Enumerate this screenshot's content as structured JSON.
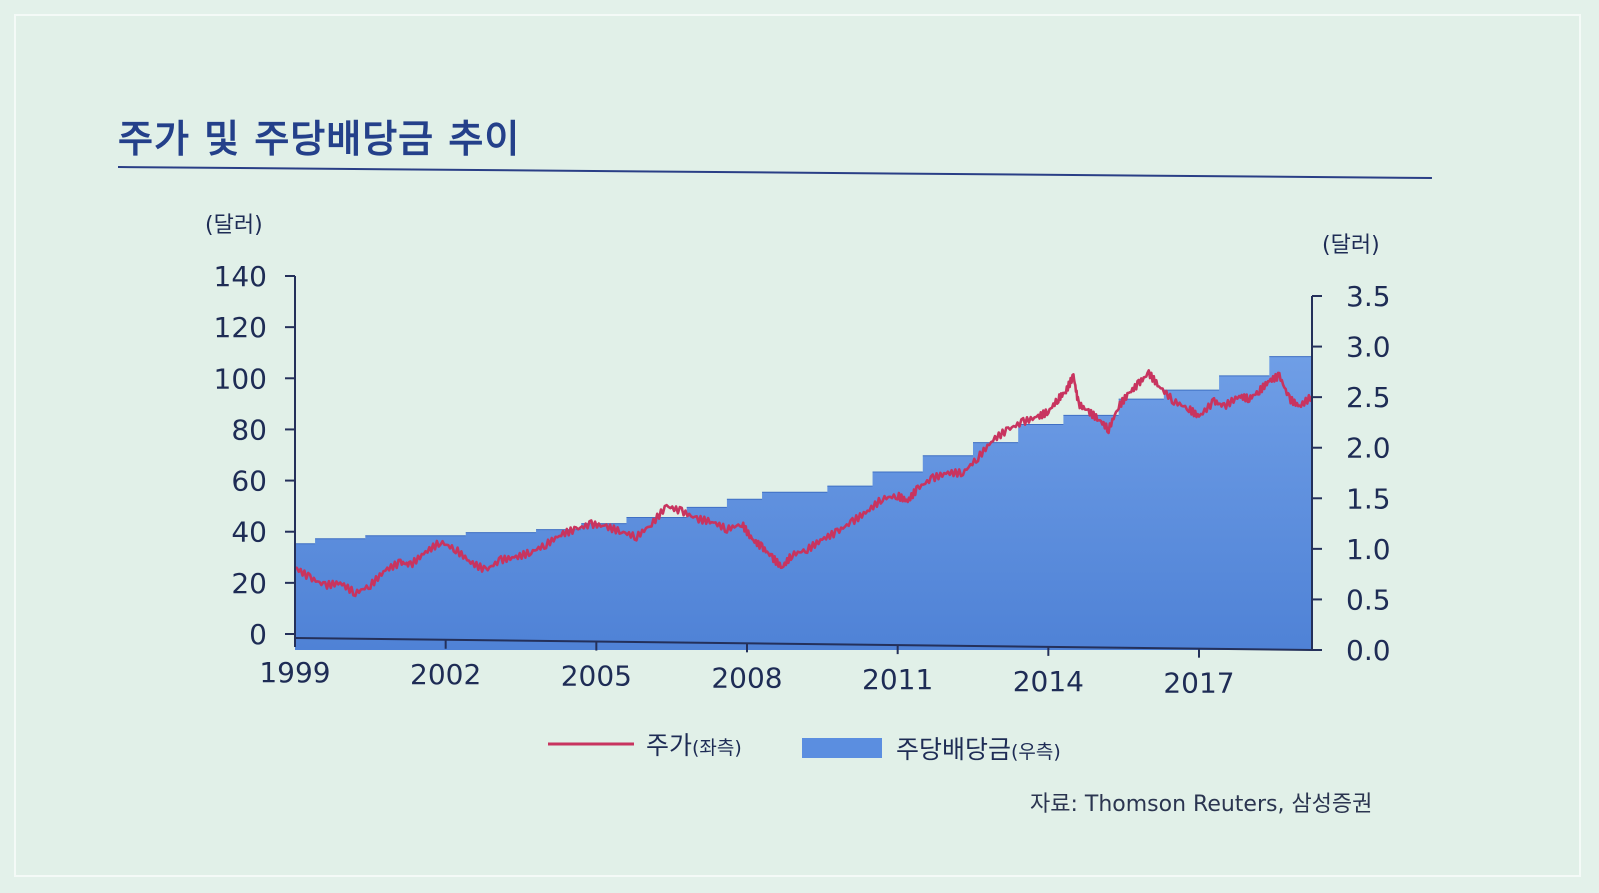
{
  "title": "주가 및 주당배당금 추이",
  "source": "자료: Thomson Reuters, 삼성증권",
  "chart_data": {
    "type": "line",
    "left_axis": {
      "unit_label": "(달러)",
      "ticks": [
        "140",
        "120",
        "100",
        "80",
        "60",
        "40",
        "20",
        "0"
      ],
      "range": [
        0,
        140
      ]
    },
    "right_axis": {
      "unit_label": "(달러)",
      "ticks": [
        "3.5",
        "3.0",
        "2.5",
        "2.0",
        "1.5",
        "1.0",
        "0.5",
        "0.0"
      ],
      "range": [
        0,
        3.5
      ]
    },
    "x_ticks": [
      "1999",
      "2002",
      "2005",
      "2008",
      "2011",
      "2014",
      "2017"
    ],
    "x_range": [
      1999.0,
      2019.25
    ],
    "grid": false,
    "legend_position": "bottom",
    "series": [
      {
        "name": "주가(좌측)",
        "type": "line",
        "axis": "left",
        "color": "#c8345f",
        "x": [
          1999.0,
          1999.3,
          1999.6,
          1999.9,
          2000.2,
          2000.5,
          2000.8,
          2001.1,
          2001.3,
          2001.6,
          2001.9,
          2002.2,
          2002.5,
          2002.8,
          2003.1,
          2003.4,
          2003.7,
          2004.0,
          2004.3,
          2004.6,
          2004.9,
          2005.2,
          2005.5,
          2005.8,
          2006.1,
          2006.4,
          2006.7,
          2007.0,
          2007.3,
          2007.6,
          2007.9,
          2008.1,
          2008.3,
          2008.5,
          2008.7,
          2008.9,
          2009.2,
          2009.5,
          2009.8,
          2010.1,
          2010.4,
          2010.7,
          2011.0,
          2011.2,
          2011.4,
          2011.7,
          2012.0,
          2012.3,
          2012.6,
          2012.9,
          2013.2,
          2013.5,
          2013.8,
          2014.0,
          2014.2,
          2014.35,
          2014.5,
          2014.6,
          2014.8,
          2015.0,
          2015.2,
          2015.4,
          2015.6,
          2015.8,
          2016.0,
          2016.2,
          2016.5,
          2016.8,
          2017.0,
          2017.3,
          2017.5,
          2017.8,
          2018.0,
          2018.2,
          2018.4,
          2018.6,
          2018.8,
          2019.0,
          2019.25
        ],
        "y": [
          26,
          22,
          19,
          20,
          16,
          19,
          25,
          28,
          27,
          32,
          36,
          33,
          28,
          25,
          29,
          30,
          32,
          35,
          39,
          41,
          43,
          42,
          40,
          38,
          43,
          50,
          48,
          45,
          44,
          41,
          43,
          37,
          34,
          30,
          26,
          31,
          33,
          37,
          40,
          44,
          48,
          53,
          54,
          52,
          57,
          61,
          63,
          63,
          69,
          76,
          80,
          83,
          85,
          87,
          92,
          95,
          101,
          90,
          87,
          84,
          80,
          89,
          94,
          98,
          102,
          97,
          91,
          88,
          85,
          91,
          89,
          93,
          92,
          95,
          99,
          101,
          92,
          89,
          93
        ]
      },
      {
        "name": "주당배당금(우측)",
        "type": "area-step",
        "axis": "right",
        "color": "#5b8ee0",
        "x": [
          1999.0,
          1999.4,
          2000.4,
          2002.4,
          2003.8,
          2004.7,
          2005.6,
          2006.8,
          2007.6,
          2008.3,
          2009.6,
          2010.5,
          2011.5,
          2012.5,
          2013.4,
          2014.3,
          2015.4,
          2016.3,
          2017.4,
          2018.4
        ],
        "y": [
          1.05,
          1.1,
          1.13,
          1.16,
          1.19,
          1.25,
          1.31,
          1.41,
          1.49,
          1.56,
          1.62,
          1.76,
          1.92,
          2.05,
          2.23,
          2.32,
          2.48,
          2.57,
          2.71,
          2.9
        ],
        "end_x": 2019.25
      }
    ]
  },
  "legend": {
    "price_label": "주가",
    "price_note": "(좌측)",
    "dividend_label": "주당배당금",
    "dividend_note": "(우측)"
  }
}
